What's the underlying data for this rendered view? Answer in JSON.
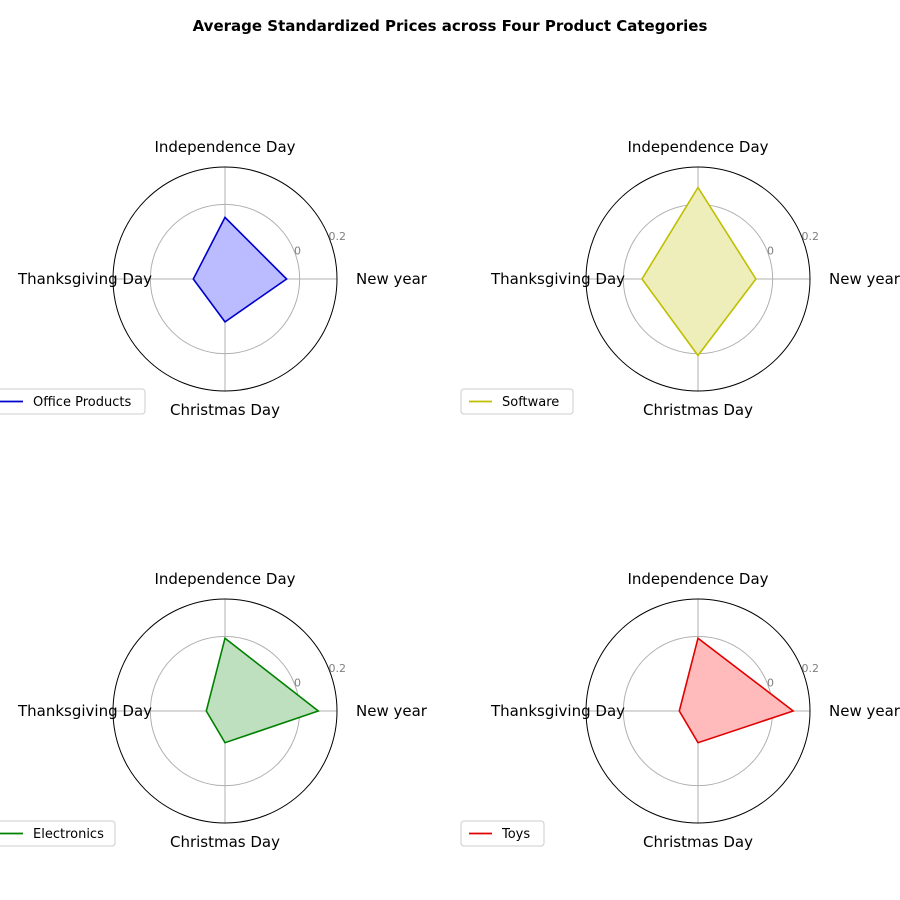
{
  "chart_data": {
    "type": "radar",
    "title": "Average Standardized Prices across Four Product Categories",
    "categories": [
      "New year",
      "Independence Day",
      "Thanksgiving Day",
      "Christmas Day"
    ],
    "rlim": [
      -0.4,
      0.2
    ],
    "rticks": [
      -0.4,
      0,
      0.2
    ],
    "rtick_labels": [
      "-0.4",
      "0",
      "0.2"
    ],
    "grid": true,
    "legend_position": "lower-left",
    "series": [
      {
        "name": "Office Products",
        "color": "#0000cc",
        "fill": "#bbbbff",
        "values": [
          -0.07,
          -0.07,
          -0.23,
          -0.17
        ]
      },
      {
        "name": "Software",
        "color": "#bfbf00",
        "fill": "#eeeebb",
        "values": [
          -0.09,
          0.09,
          -0.1,
          0.01
        ]
      },
      {
        "name": "Electronics",
        "color": "#008000",
        "fill": "#bfe0bf",
        "values": [
          0.1,
          -0.01,
          -0.3,
          -0.23
        ]
      },
      {
        "name": "Toys",
        "color": "#e00000",
        "fill": "#ffbbbb",
        "values": [
          0.11,
          -0.01,
          -0.3,
          -0.23
        ]
      }
    ]
  }
}
